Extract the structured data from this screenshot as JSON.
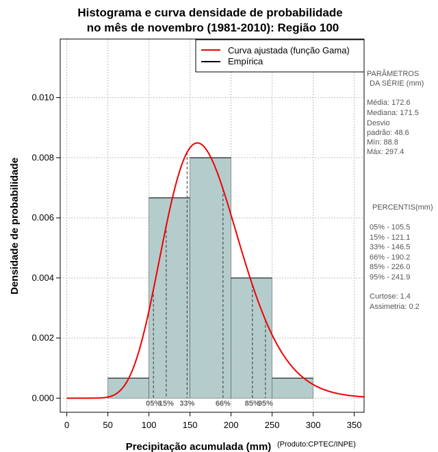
{
  "chart_data": {
    "type": "bar",
    "title_lines": [
      "Histograma e curva densidade de probabilidade",
      "no mês de novembro (1981-2010): Região 100"
    ],
    "xlabel": "Precipitação acumulada (mm)",
    "ylabel": "Densidade de probabilidade",
    "credit": "(Produto:CPTEC/INPE)",
    "xlim": [
      -8,
      362
    ],
    "ylim": [
      -0.00047,
      0.01195
    ],
    "x_ticks": [
      0,
      50,
      100,
      150,
      200,
      250,
      300,
      350
    ],
    "y_ticks": [
      0.0,
      0.002,
      0.004,
      0.006,
      0.008,
      0.01
    ],
    "y_tick_labels": [
      "0.000",
      "0.002",
      "0.004",
      "0.006",
      "0.008",
      "0.010"
    ],
    "grid": true,
    "bins": [
      {
        "start": 50,
        "end": 100,
        "density": 0.000667
      },
      {
        "start": 100,
        "end": 150,
        "density": 0.006667
      },
      {
        "start": 150,
        "end": 200,
        "density": 0.008
      },
      {
        "start": 200,
        "end": 250,
        "density": 0.004
      },
      {
        "start": 250,
        "end": 300,
        "density": 0.000667
      }
    ],
    "bar_color": "#b4cccc",
    "curve": {
      "distribution": "gamma",
      "mean": 172.6,
      "sd": 48.6,
      "x_range": [
        0,
        362
      ],
      "color": "#ee0000"
    },
    "percentile_lines": [
      {
        "label": "05%",
        "value": 105.5
      },
      {
        "label": "15%",
        "value": 121.1
      },
      {
        "label": "33%",
        "value": 146.5
      },
      {
        "label": "66%",
        "value": 190.2
      },
      {
        "label": "85%",
        "value": 226.0
      },
      {
        "label": "95%",
        "value": 241.9
      }
    ],
    "legend": {
      "position": "top-right",
      "entries": [
        {
          "label": "Curva ajustada (função Gama)",
          "color": "#ee0000"
        },
        {
          "label": "Empírica",
          "color": "#000000"
        }
      ]
    }
  },
  "side_panel": {
    "params_title_1": "PARÂMETROS",
    "params_title_2": "DA SÉRIE (mm)",
    "media": "Média:  172.6",
    "mediana": "Mediana:  171.5",
    "desvio_1": "Desvio",
    "desvio_2": "padrão:  48.6",
    "min": "Mín:  88.8",
    "max": "Máx:  297.4",
    "percentis_title": "PERCENTIS(mm)",
    "p05": "05% -  105.5",
    "p15": "15% -  121.1",
    "p33": "33% -  146.5",
    "p66": "66% -  190.2",
    "p85": "85% -  226.0",
    "p95": "95% -  241.9",
    "curtose": "Curtose:  1.4",
    "assimetria": "Assimetria:  0.2"
  }
}
